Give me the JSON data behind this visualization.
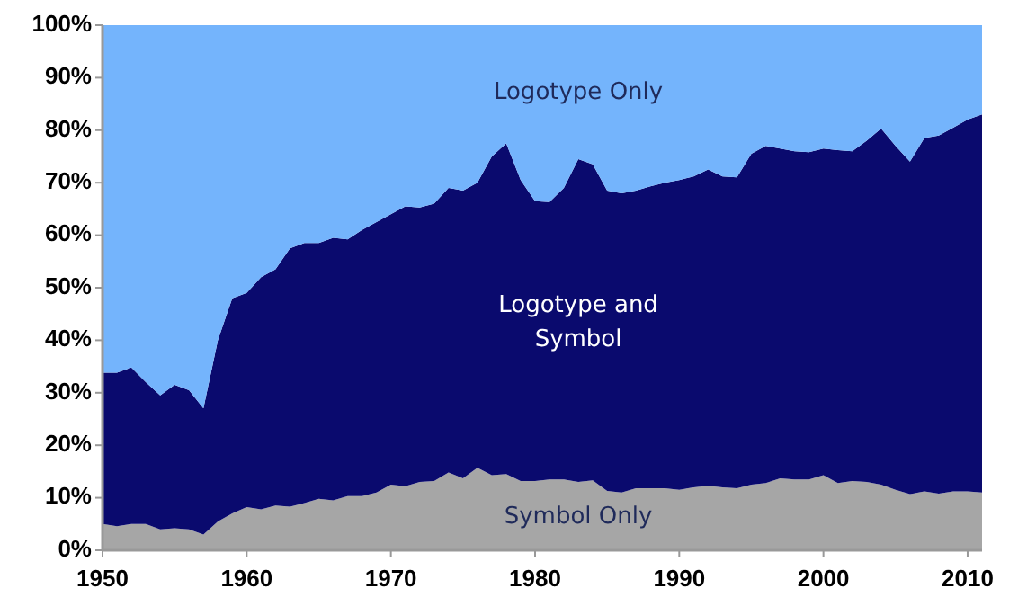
{
  "chart_data": {
    "type": "area",
    "stacked": true,
    "grid": false,
    "x": [
      1950,
      1951,
      1952,
      1953,
      1954,
      1955,
      1956,
      1957,
      1958,
      1959,
      1960,
      1961,
      1962,
      1963,
      1964,
      1965,
      1966,
      1967,
      1968,
      1969,
      1970,
      1971,
      1972,
      1973,
      1974,
      1975,
      1976,
      1977,
      1978,
      1979,
      1980,
      1981,
      1982,
      1983,
      1984,
      1985,
      1986,
      1987,
      1988,
      1989,
      1990,
      1991,
      1992,
      1993,
      1994,
      1995,
      1996,
      1997,
      1998,
      1999,
      2000,
      2001,
      2002,
      2003,
      2004,
      2005,
      2006,
      2007,
      2008,
      2009,
      2010,
      2011
    ],
    "xlim": [
      1950,
      2011
    ],
    "xticks": [
      1950,
      1960,
      1970,
      1980,
      1990,
      2000,
      2010
    ],
    "ylim": [
      0,
      100
    ],
    "yticks": [
      {
        "value": 0,
        "label": "0%"
      },
      {
        "value": 10,
        "label": "10%"
      },
      {
        "value": 20,
        "label": "20%"
      },
      {
        "value": 30,
        "label": "30%"
      },
      {
        "value": 40,
        "label": "40%"
      },
      {
        "value": 50,
        "label": "50%"
      },
      {
        "value": 60,
        "label": "60%"
      },
      {
        "value": 70,
        "label": "70%"
      },
      {
        "value": 80,
        "label": "80%"
      },
      {
        "value": 90,
        "label": "90%"
      },
      {
        "value": 100,
        "label": "100%"
      }
    ],
    "series": [
      {
        "name": "Symbol Only",
        "color": "#a6a6a6",
        "values": [
          5,
          4.6,
          5,
          5,
          4,
          4.2,
          4,
          3,
          5.5,
          7,
          8.2,
          7.8,
          8.5,
          8.3,
          9,
          9.8,
          9.5,
          10.3,
          10.3,
          11,
          12.5,
          12.2,
          13,
          13.2,
          14.8,
          13.7,
          15.7,
          14.3,
          14.5,
          13.2,
          13.2,
          13.5,
          13.5,
          13,
          13.3,
          11.3,
          11,
          11.8,
          11.8,
          11.8,
          11.5,
          12,
          12.3,
          12,
          11.8,
          12.5,
          12.8,
          13.7,
          13.5,
          13.5,
          14.3,
          12.8,
          13.2,
          13,
          12.5,
          11.5,
          10.7,
          11.2,
          10.8,
          11.2,
          11.2,
          11
        ]
      },
      {
        "name": "Logotype and Symbol",
        "color": "#0a0a6e",
        "values": [
          28.8,
          29.2,
          29.8,
          27,
          25.5,
          27.3,
          26.5,
          24,
          34.5,
          41,
          40.8,
          44.2,
          45,
          49.2,
          49.5,
          48.7,
          50,
          48.9,
          50.7,
          51.5,
          51.5,
          53.3,
          52.3,
          52.8,
          54.2,
          54.8,
          54.3,
          60.7,
          63,
          57.3,
          53.3,
          52.8,
          55.5,
          61.5,
          60.2,
          57.2,
          57,
          56.7,
          57.5,
          58.2,
          59,
          59.2,
          60.2,
          59.2,
          59.2,
          63,
          64.2,
          62.8,
          62.5,
          62.3,
          62.2,
          63.4,
          62.8,
          65,
          67.8,
          65.5,
          63.3,
          67.3,
          68.2,
          69.3,
          70.8,
          72
        ]
      },
      {
        "name": "Logotype Only",
        "color": "#74b4fc",
        "values": [
          66.2,
          66.2,
          65.2,
          68,
          70.5,
          68.5,
          69.5,
          73,
          60,
          52,
          51,
          48,
          46.5,
          42.5,
          41.5,
          41.5,
          40.5,
          40.8,
          39,
          37.5,
          36,
          34.5,
          34.7,
          34,
          31,
          31.5,
          30,
          25,
          22.5,
          29.5,
          33.5,
          33.7,
          31,
          25.5,
          26.5,
          31.5,
          32,
          31.5,
          30.7,
          30,
          29.5,
          28.8,
          27.5,
          28.8,
          29,
          24.5,
          23,
          23.5,
          24,
          24.2,
          23.5,
          23.8,
          24,
          22,
          19.7,
          23,
          26,
          21.5,
          21,
          19.5,
          18,
          17
        ]
      }
    ]
  }
}
